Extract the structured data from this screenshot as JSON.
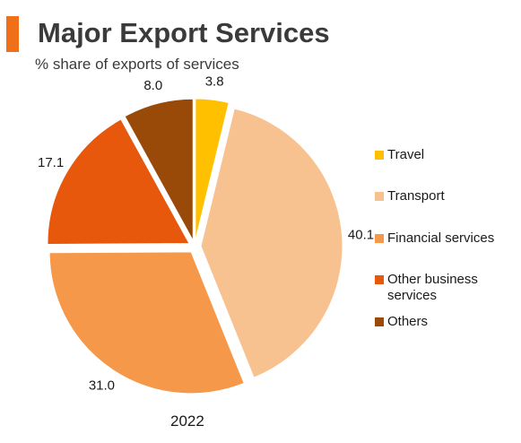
{
  "header": {
    "title": "Major Export Services",
    "subtitle": "% share of exports of services"
  },
  "colors": {
    "accent": "#f0701a",
    "travel": "#ffc000",
    "transport": "#f8c190",
    "financial": "#f5984a",
    "other_business": "#e8580c",
    "others": "#9a4a08"
  },
  "chart_data": {
    "type": "pie",
    "title": "Major Export Services",
    "subtitle": "% share of exports of services",
    "xlabel": "2022",
    "categories": [
      "Travel",
      "Transport",
      "Financial services",
      "Other business services",
      "Others"
    ],
    "values": [
      3.8,
      40.1,
      31.0,
      17.1,
      8.0
    ],
    "value_labels": [
      "3.8",
      "40.1",
      "31.0",
      "17.1",
      "8.0"
    ],
    "colors": [
      "#ffc000",
      "#f8c190",
      "#f5984a",
      "#e8580c",
      "#9a4a08"
    ],
    "legend_position": "right",
    "exploded": true,
    "start": "12 o'clock",
    "direction": "clockwise"
  },
  "legend": {
    "items": [
      "Travel",
      "Transport",
      "Financial services",
      "Other business services",
      "Others"
    ]
  },
  "footer": {
    "year": "2022"
  }
}
